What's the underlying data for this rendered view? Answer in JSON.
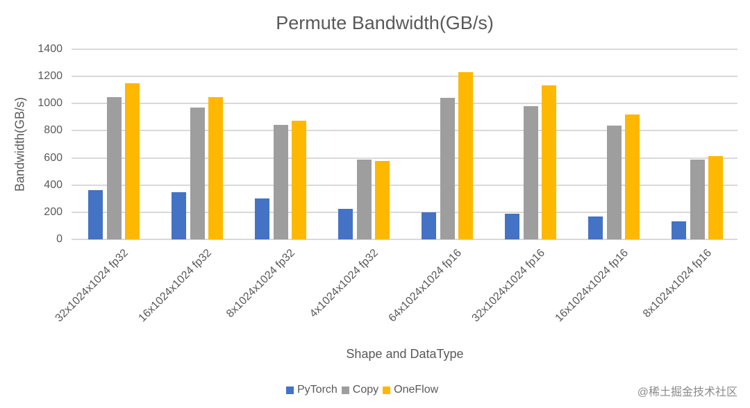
{
  "chart_data": {
    "type": "bar",
    "title": "Permute Bandwidth(GB/s)",
    "xlabel": "Shape and DataType",
    "ylabel": "Bandwidth(GB/s)",
    "ylim": [
      0,
      1400
    ],
    "yticks": [
      0,
      200,
      400,
      600,
      800,
      1000,
      1200,
      1400
    ],
    "grid": true,
    "legend_position": "bottom",
    "categories": [
      "32x1024x1024 fp32",
      "16x1024x1024 fp32",
      "8x1024x1024 fp32",
      "4x1024x1024 fp32",
      "64x1024x1024 fp16",
      "32x1024x1024 fp16",
      "16x1024x1024 fp16",
      "8x1024x1024 fp16"
    ],
    "series": [
      {
        "name": "PyTorch",
        "color": "#4472C4",
        "values": [
          365,
          345,
          302,
          225,
          200,
          190,
          170,
          133
        ]
      },
      {
        "name": "Copy",
        "color": "#9E9E9E",
        "values": [
          1050,
          970,
          845,
          590,
          1040,
          980,
          840,
          590
        ]
      },
      {
        "name": "OneFlow",
        "color": "#FFB800",
        "values": [
          1150,
          1050,
          875,
          580,
          1230,
          1135,
          920,
          615
        ]
      }
    ]
  },
  "watermark": "@稀土掘金技术社区"
}
